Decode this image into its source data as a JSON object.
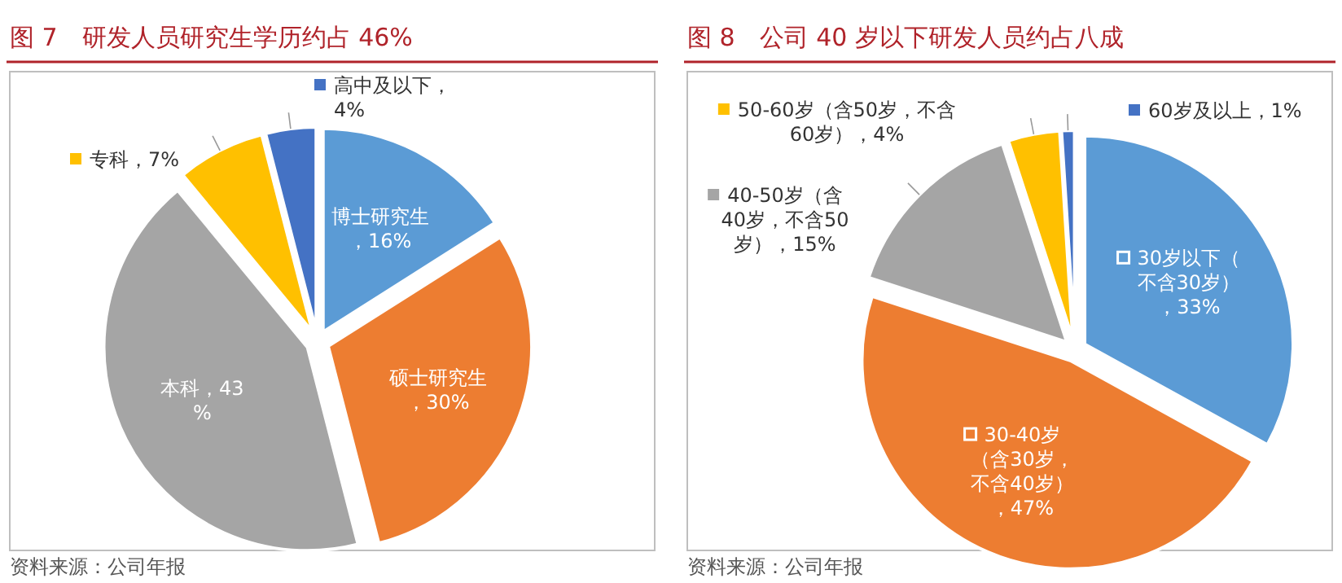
{
  "chart_data": [
    {
      "type": "pie",
      "title": "图 7　研发人员研究生学历约占 46%",
      "categories": [
        "博士研究生",
        "硕士研究生",
        "本科",
        "专科",
        "高中及以下"
      ],
      "values": [
        16,
        30,
        43,
        7,
        4
      ],
      "value_labels": [
        "，16%",
        "，30%",
        "，43%",
        "，7%",
        "，4%"
      ],
      "colors": [
        "#5b9bd5",
        "#ed7d31",
        "#a5a5a5",
        "#ffc000",
        "#4472c4"
      ],
      "legend": "top left",
      "annotations": [
        "资料来源：公司年报"
      ]
    },
    {
      "type": "pie",
      "title": "图 8　公司 40 岁以下研发人员约占八成",
      "categories": [
        "30岁以下（不含30岁）",
        "30-40岁（含30岁，不含40岁）",
        "40-50岁（含40岁，不含50岁）",
        "50-60岁（含50岁，不含60岁）",
        "60岁及以上"
      ],
      "values": [
        33,
        47,
        15,
        4,
        1
      ],
      "value_labels": [
        "，33%",
        "，47%",
        "，15%",
        "，4%",
        "，1%"
      ],
      "colors": [
        "#5b9bd5",
        "#ed7d31",
        "#a5a5a5",
        "#ffc000",
        "#4472c4"
      ],
      "legend": "top",
      "annotations": [
        "资料来源：公司年报"
      ]
    }
  ]
}
